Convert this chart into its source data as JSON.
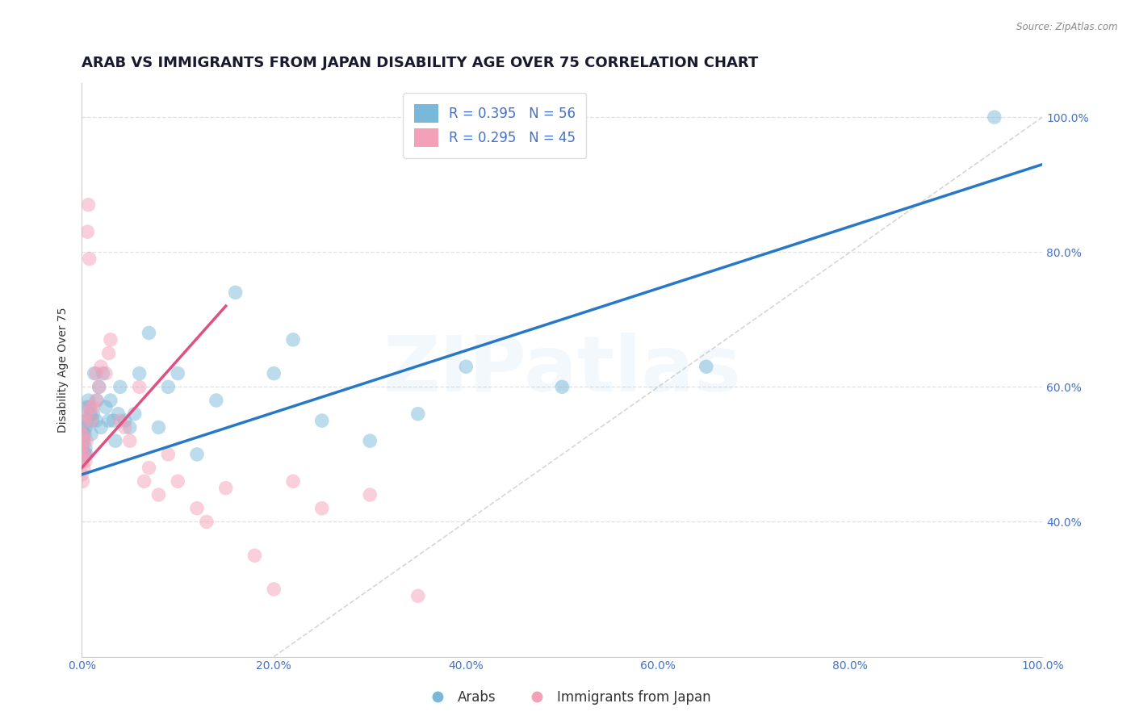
{
  "title": "ARAB VS IMMIGRANTS FROM JAPAN DISABILITY AGE OVER 75 CORRELATION CHART",
  "source": "Source: ZipAtlas.com",
  "ylabel": "Disability Age Over 75",
  "xlim": [
    0,
    1.0
  ],
  "ylim": [
    0.2,
    1.05
  ],
  "xticks": [
    0.0,
    0.2,
    0.4,
    0.6,
    0.8,
    1.0
  ],
  "xticklabels": [
    "0.0%",
    "20.0%",
    "40.0%",
    "60.0%",
    "80.0%",
    "100.0%"
  ],
  "yticks_right": [
    0.4,
    0.6,
    0.8,
    1.0
  ],
  "yticklabels_right": [
    "40.0%",
    "60.0%",
    "80.0%",
    "100.0%"
  ],
  "legend_entry1": "R = 0.395   N = 56",
  "legend_entry2": "R = 0.295   N = 45",
  "legend_label1": "Arabs",
  "legend_label2": "Immigrants from Japan",
  "color_arab": "#7ab8d9",
  "color_japan": "#f4a0b8",
  "color_arab_line": "#2878c8",
  "color_japan_line": "#e05080",
  "color_diag": "#cccccc",
  "arab_scatter_x": [
    0.0,
    0.0,
    0.0,
    0.0,
    0.001,
    0.001,
    0.001,
    0.001,
    0.002,
    0.002,
    0.003,
    0.003,
    0.004,
    0.004,
    0.005,
    0.005,
    0.006,
    0.007,
    0.008,
    0.009,
    0.01,
    0.011,
    0.012,
    0.013,
    0.015,
    0.016,
    0.018,
    0.02,
    0.022,
    0.025,
    0.028,
    0.03,
    0.033,
    0.035,
    0.038,
    0.04,
    0.045,
    0.05,
    0.055,
    0.06,
    0.07,
    0.08,
    0.09,
    0.1,
    0.12,
    0.14,
    0.16,
    0.2,
    0.22,
    0.25,
    0.3,
    0.35,
    0.4,
    0.5,
    0.65,
    0.95
  ],
  "arab_scatter_y": [
    0.5,
    0.51,
    0.52,
    0.54,
    0.49,
    0.51,
    0.53,
    0.55,
    0.5,
    0.52,
    0.5,
    0.53,
    0.51,
    0.54,
    0.5,
    0.57,
    0.55,
    0.58,
    0.57,
    0.56,
    0.53,
    0.55,
    0.56,
    0.62,
    0.55,
    0.58,
    0.6,
    0.54,
    0.62,
    0.57,
    0.55,
    0.58,
    0.55,
    0.52,
    0.56,
    0.6,
    0.55,
    0.54,
    0.56,
    0.62,
    0.68,
    0.54,
    0.6,
    0.62,
    0.5,
    0.58,
    0.74,
    0.62,
    0.67,
    0.55,
    0.52,
    0.56,
    0.63,
    0.6,
    0.63,
    1.0
  ],
  "japan_scatter_x": [
    0.0,
    0.0,
    0.0,
    0.0,
    0.001,
    0.001,
    0.001,
    0.002,
    0.002,
    0.003,
    0.003,
    0.004,
    0.005,
    0.005,
    0.006,
    0.007,
    0.008,
    0.009,
    0.01,
    0.012,
    0.015,
    0.015,
    0.018,
    0.02,
    0.025,
    0.028,
    0.03,
    0.04,
    0.045,
    0.05,
    0.06,
    0.065,
    0.07,
    0.08,
    0.09,
    0.1,
    0.12,
    0.13,
    0.15,
    0.18,
    0.2,
    0.22,
    0.25,
    0.3,
    0.35
  ],
  "japan_scatter_y": [
    0.47,
    0.49,
    0.51,
    0.53,
    0.46,
    0.5,
    0.53,
    0.48,
    0.52,
    0.5,
    0.55,
    0.49,
    0.52,
    0.56,
    0.83,
    0.87,
    0.79,
    0.57,
    0.55,
    0.57,
    0.58,
    0.62,
    0.6,
    0.63,
    0.62,
    0.65,
    0.67,
    0.55,
    0.54,
    0.52,
    0.6,
    0.46,
    0.48,
    0.44,
    0.5,
    0.46,
    0.42,
    0.4,
    0.45,
    0.35,
    0.3,
    0.46,
    0.42,
    0.44,
    0.29
  ],
  "arab_line_x": [
    0.0,
    1.0
  ],
  "arab_line_y": [
    0.47,
    0.93
  ],
  "japan_line_x": [
    0.0,
    0.15
  ],
  "japan_line_y": [
    0.48,
    0.72
  ],
  "diag_line_x": [
    0.2,
    1.0
  ],
  "diag_line_y": [
    0.2,
    1.0
  ],
  "background_color": "#ffffff",
  "grid_color": "#dddddd",
  "title_fontsize": 13,
  "axis_fontsize": 10,
  "tick_fontsize": 10,
  "legend_fontsize": 12,
  "watermark_text": "ZIPatlas",
  "watermark_alpha": 0.12,
  "watermark_fontsize": 70
}
